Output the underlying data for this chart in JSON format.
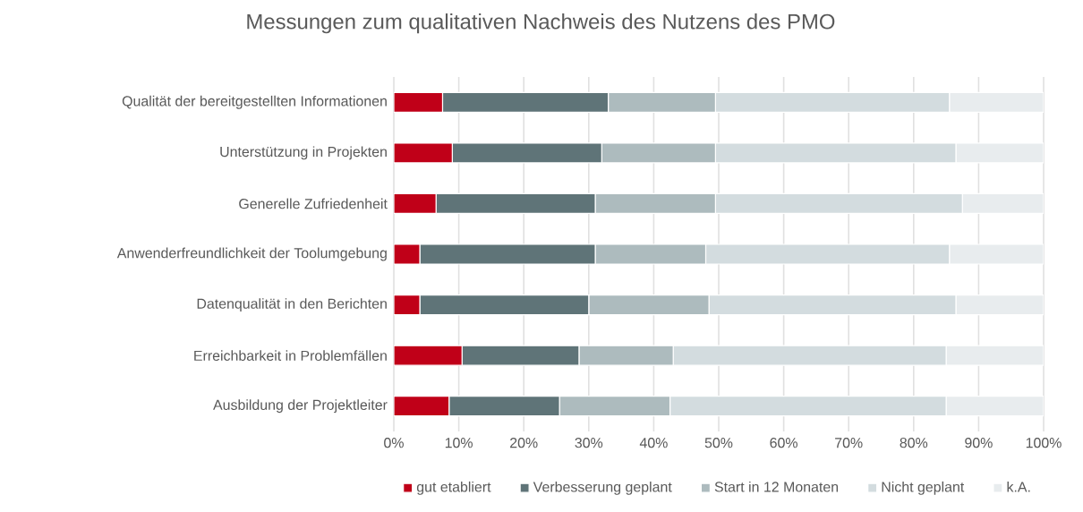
{
  "chart_data": {
    "type": "bar",
    "orientation": "horizontal",
    "stacked": true,
    "title": "Messungen zum qualitativen Nachweis des Nutzens des PMO",
    "categories": [
      "Qualität der bereitgestellten Informationen",
      "Unterstützung in Projekten",
      "Generelle Zufriedenheit",
      "Anwenderfreundlichkeit der Toolumgebung",
      "Datenqualität in den Berichten",
      "Erreichbarkeit in Problemfällen",
      "Ausbildung der Projektleiter"
    ],
    "series": [
      {
        "name": "gut etabliert",
        "color": "#c00018",
        "values": [
          7.5,
          9,
          6.5,
          4,
          4,
          10.5,
          8.5
        ]
      },
      {
        "name": "Verbesserung geplant",
        "color": "#5f7478",
        "values": [
          25.5,
          23,
          24.5,
          27,
          26,
          18,
          17
        ]
      },
      {
        "name": "Start in 12 Monaten",
        "color": "#adbbbe",
        "values": [
          16.5,
          17.5,
          18.5,
          17,
          18.5,
          14.5,
          17
        ]
      },
      {
        "name": "Nicht geplant",
        "color": "#d3dcdf",
        "values": [
          36,
          37,
          38,
          37.5,
          38,
          42,
          42.5
        ]
      },
      {
        "name": "k.A.",
        "color": "#e8ecee",
        "values": [
          14.5,
          13.5,
          12.5,
          14.5,
          13.5,
          15,
          15
        ]
      }
    ],
    "xlim": [
      0,
      100
    ],
    "xticks": [
      {
        "value": 0,
        "label": "0%"
      },
      {
        "value": 10,
        "label": "10%"
      },
      {
        "value": 20,
        "label": "20%"
      },
      {
        "value": 30,
        "label": "30%"
      },
      {
        "value": 40,
        "label": "40%"
      },
      {
        "value": 50,
        "label": "50%"
      },
      {
        "value": 60,
        "label": "60%"
      },
      {
        "value": 70,
        "label": "70%"
      },
      {
        "value": 80,
        "label": "80%"
      },
      {
        "value": 90,
        "label": "90%"
      },
      {
        "value": 100,
        "label": "100%"
      }
    ],
    "grid": "x",
    "legend": "bottom"
  }
}
